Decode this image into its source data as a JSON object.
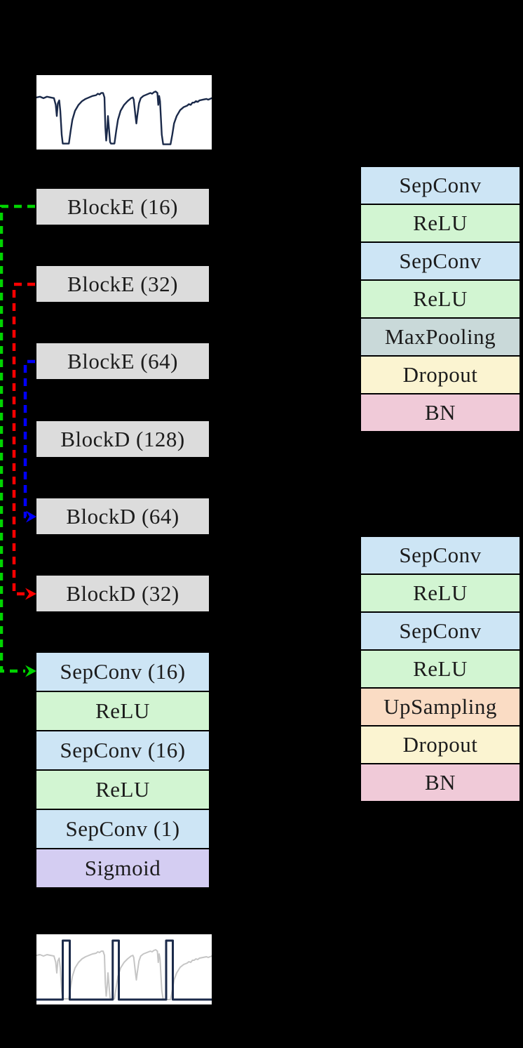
{
  "figure": {
    "kind": "neural-network-architecture-diagram",
    "background": "#000000"
  },
  "palette": {
    "block_gray": "#dcdcdc",
    "sepconv_blue": "#cde5f5",
    "relu_green": "#d2f5d2",
    "maxpool_teal": "#c9d9d9",
    "dropout_yellow": "#fbf4d1",
    "bn_pink": "#f0cad8",
    "upsampling_orange": "#fadcc4",
    "sigmoid_purple": "#d4cdf2",
    "plot_bg": "#ffffff",
    "signal_navy": "#1b2a4a",
    "signal_faded_gray": "#c5c5c5"
  },
  "left_column": {
    "encoder_decoder_blocks": [
      {
        "label": "BlockE (16)"
      },
      {
        "label": "BlockE (32)"
      },
      {
        "label": "BlockE (64)"
      },
      {
        "label": "BlockD (128)"
      },
      {
        "label": "BlockD (64)"
      },
      {
        "label": "BlockD (32)"
      }
    ],
    "output_stack": [
      {
        "label": "SepConv (16)"
      },
      {
        "label": "ReLU"
      },
      {
        "label": "SepConv (16)"
      },
      {
        "label": "ReLU"
      },
      {
        "label": "SepConv (1)"
      },
      {
        "label": "Sigmoid"
      }
    ]
  },
  "right_column": {
    "blocke_detail": [
      {
        "label": "SepConv"
      },
      {
        "label": "ReLU"
      },
      {
        "label": "SepConv"
      },
      {
        "label": "ReLU"
      },
      {
        "label": "MaxPooling"
      },
      {
        "label": "Dropout"
      },
      {
        "label": "BN"
      }
    ],
    "blockd_detail": [
      {
        "label": "SepConv"
      },
      {
        "label": "ReLU"
      },
      {
        "label": "SepConv"
      },
      {
        "label": "ReLU"
      },
      {
        "label": "UpSampling"
      },
      {
        "label": "Dropout"
      },
      {
        "label": "BN"
      }
    ]
  },
  "skip_connections": [
    {
      "from": "BlockE (16)",
      "to": "SepConv (16)",
      "color": "#00d400"
    },
    {
      "from": "BlockE (32)",
      "to": "BlockD (32)",
      "color": "#ff0000"
    },
    {
      "from": "BlockE (64)",
      "to": "BlockD (64)",
      "color": "#0000ff"
    }
  ],
  "plots": {
    "input": {
      "series": [
        {
          "name": "raw-signal",
          "color": "#1b2a4a",
          "points": [
            [
              0,
              30
            ],
            [
              2,
              29
            ],
            [
              4,
              31
            ],
            [
              6,
              29
            ],
            [
              8,
              30
            ],
            [
              10,
              31
            ],
            [
              11,
              40
            ],
            [
              11.6,
              55
            ],
            [
              12.2,
              38
            ],
            [
              13,
              34
            ],
            [
              13.6,
              48
            ],
            [
              14.4,
              80
            ],
            [
              15,
              92
            ],
            [
              18.5,
              92
            ],
            [
              19.5,
              75
            ],
            [
              20.5,
              60
            ],
            [
              22,
              48
            ],
            [
              24,
              40
            ],
            [
              26,
              35
            ],
            [
              28,
              32
            ],
            [
              30,
              30
            ],
            [
              32,
              28
            ],
            [
              34,
              27
            ],
            [
              35,
              25
            ],
            [
              36,
              26
            ],
            [
              37,
              24
            ],
            [
              38,
              24
            ],
            [
              38.8,
              30
            ],
            [
              39.3,
              70
            ],
            [
              39.8,
              88
            ],
            [
              40.3,
              75
            ],
            [
              40.8,
              55
            ],
            [
              41.3,
              70
            ],
            [
              42,
              90
            ],
            [
              42.5,
              92
            ],
            [
              44.5,
              92
            ],
            [
              45.5,
              75
            ],
            [
              46.5,
              60
            ],
            [
              48,
              48
            ],
            [
              50,
              40
            ],
            [
              52,
              35
            ],
            [
              54,
              31
            ],
            [
              55,
              30
            ],
            [
              55.5,
              33
            ],
            [
              56.5,
              55
            ],
            [
              57,
              65
            ],
            [
              57.5,
              55
            ],
            [
              58.5,
              38
            ],
            [
              59.5,
              31
            ],
            [
              61,
              28
            ],
            [
              63,
              26
            ],
            [
              65,
              24
            ],
            [
              66,
              25
            ],
            [
              67,
              23
            ],
            [
              68,
              22
            ],
            [
              69,
              24
            ],
            [
              69.5,
              40
            ],
            [
              70,
              28
            ],
            [
              70.5,
              35
            ],
            [
              71.5,
              80
            ],
            [
              72.3,
              93
            ],
            [
              76.5,
              93
            ],
            [
              77.5,
              80
            ],
            [
              78.5,
              65
            ],
            [
              80,
              55
            ],
            [
              82,
              47
            ],
            [
              84,
              43
            ],
            [
              86,
              41
            ],
            [
              87,
              39
            ],
            [
              88,
              40
            ],
            [
              89,
              37
            ],
            [
              90,
              37
            ],
            [
              91,
              35
            ],
            [
              92,
              36
            ],
            [
              93,
              34
            ],
            [
              95,
              33
            ],
            [
              97,
              32
            ],
            [
              98,
              33
            ],
            [
              100,
              31
            ]
          ]
        }
      ]
    },
    "output": {
      "series": [
        {
          "name": "raw-signal-faded",
          "color": "#c5c5c5",
          "points": [
            [
              0,
              30
            ],
            [
              2,
              29
            ],
            [
              4,
              31
            ],
            [
              6,
              29
            ],
            [
              8,
              30
            ],
            [
              10,
              31
            ],
            [
              11,
              40
            ],
            [
              11.6,
              55
            ],
            [
              12.2,
              38
            ],
            [
              13,
              34
            ],
            [
              13.6,
              48
            ],
            [
              14.4,
              80
            ],
            [
              15,
              92
            ],
            [
              18.5,
              92
            ],
            [
              19.5,
              75
            ],
            [
              20.5,
              60
            ],
            [
              22,
              48
            ],
            [
              24,
              40
            ],
            [
              26,
              35
            ],
            [
              28,
              32
            ],
            [
              30,
              30
            ],
            [
              32,
              28
            ],
            [
              34,
              27
            ],
            [
              35,
              25
            ],
            [
              36,
              26
            ],
            [
              37,
              24
            ],
            [
              38,
              24
            ],
            [
              38.8,
              30
            ],
            [
              39.3,
              70
            ],
            [
              39.8,
              88
            ],
            [
              40.3,
              75
            ],
            [
              40.8,
              55
            ],
            [
              41.3,
              70
            ],
            [
              42,
              90
            ],
            [
              42.5,
              92
            ],
            [
              44.5,
              92
            ],
            [
              45.5,
              75
            ],
            [
              46.5,
              60
            ],
            [
              48,
              48
            ],
            [
              50,
              40
            ],
            [
              52,
              35
            ],
            [
              54,
              31
            ],
            [
              55,
              30
            ],
            [
              55.5,
              33
            ],
            [
              56.5,
              55
            ],
            [
              57,
              65
            ],
            [
              57.5,
              55
            ],
            [
              58.5,
              38
            ],
            [
              59.5,
              31
            ],
            [
              61,
              28
            ],
            [
              63,
              26
            ],
            [
              65,
              24
            ],
            [
              66,
              25
            ],
            [
              67,
              23
            ],
            [
              68,
              22
            ],
            [
              69,
              24
            ],
            [
              69.5,
              40
            ],
            [
              70,
              28
            ],
            [
              70.5,
              35
            ],
            [
              71.5,
              80
            ],
            [
              72.3,
              93
            ],
            [
              76.5,
              93
            ],
            [
              77.5,
              80
            ],
            [
              78.5,
              65
            ],
            [
              80,
              55
            ],
            [
              82,
              47
            ],
            [
              84,
              43
            ],
            [
              86,
              41
            ],
            [
              87,
              39
            ],
            [
              88,
              40
            ],
            [
              89,
              37
            ],
            [
              90,
              37
            ],
            [
              91,
              35
            ],
            [
              92,
              36
            ],
            [
              93,
              34
            ],
            [
              95,
              33
            ],
            [
              97,
              32
            ],
            [
              98,
              33
            ],
            [
              100,
              31
            ]
          ]
        },
        {
          "name": "predicted-mask",
          "color": "#1b2a4a",
          "points": [
            [
              0,
              93
            ],
            [
              15,
              93
            ],
            [
              15,
              9
            ],
            [
              19,
              9
            ],
            [
              19,
              93
            ],
            [
              43.5,
              93
            ],
            [
              43.5,
              9
            ],
            [
              47,
              9
            ],
            [
              47,
              93
            ],
            [
              74,
              93
            ],
            [
              74,
              9
            ],
            [
              77.8,
              9
            ],
            [
              77.8,
              93
            ],
            [
              100,
              93
            ]
          ]
        }
      ]
    }
  }
}
